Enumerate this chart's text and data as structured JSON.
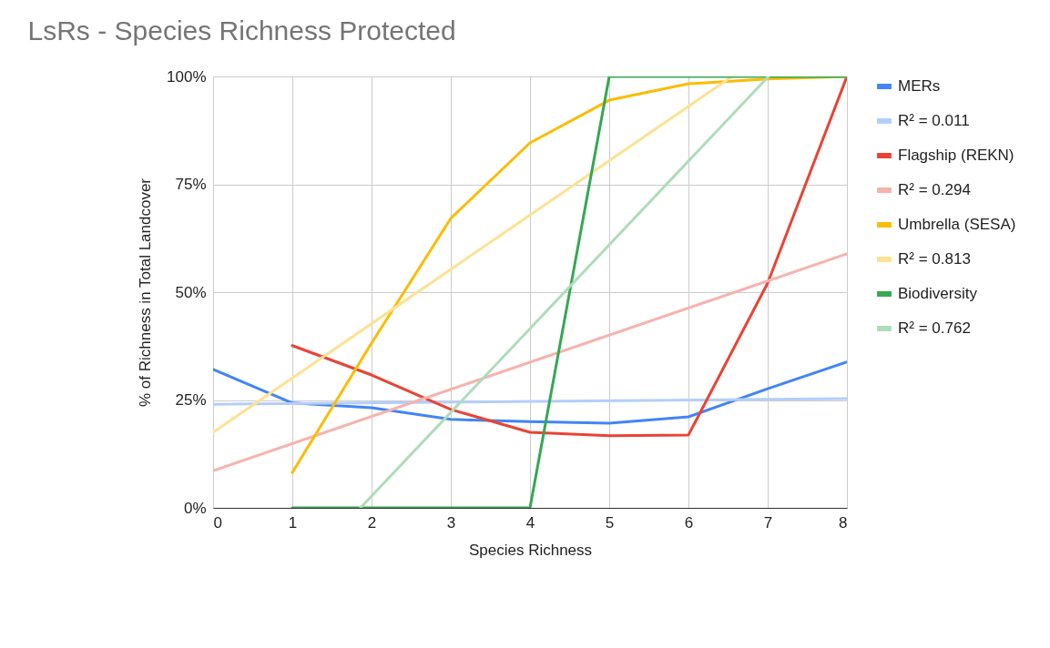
{
  "chart_data": {
    "type": "line",
    "title": "LsRs - Species Richness Protected",
    "xlabel": "Species Richness",
    "ylabel": "% of Richness in Total Landcover",
    "x": [
      0,
      1,
      2,
      3,
      4,
      5,
      6,
      7,
      8
    ],
    "series": [
      {
        "name": "MERs",
        "color": "#4285f4",
        "values": [
          32.1,
          24.3,
          23.2,
          20.5,
          20,
          19.6,
          21.1,
          27.6,
          33.8
        ]
      },
      {
        "name": "R² = 0.011",
        "color": "#b3cefb",
        "x": [
          0,
          8
        ],
        "values": [
          24.0,
          25.3
        ]
      },
      {
        "name": "Flagship (REKN)",
        "color": "#ea4335",
        "values": [
          null,
          37.6,
          30.8,
          22.8,
          17.5,
          16.7,
          16.9,
          52.1,
          100
        ]
      },
      {
        "name": "R² = 0.294",
        "color": "#f6b3ad",
        "x": [
          0,
          8
        ],
        "values": [
          8.6,
          58.9
        ]
      },
      {
        "name": "Umbrella (SESA)",
        "color": "#fbbc04",
        "values": [
          null,
          8.2,
          38.2,
          67.1,
          84.6,
          94.5,
          98.3,
          99.4,
          100
        ]
      },
      {
        "name": "R² = 0.813",
        "color": "#fde293",
        "x": [
          0,
          6.55
        ],
        "values": [
          17.5,
          100
        ]
      },
      {
        "name": "Biodiversity",
        "color": "#34a853",
        "values": [
          null,
          0,
          0,
          0,
          0,
          100,
          100,
          100,
          100
        ]
      },
      {
        "name": "R² = 0.762",
        "color": "#aedcba",
        "x": [
          1.86,
          7.01
        ],
        "values": [
          0,
          100
        ]
      }
    ],
    "xlim": [
      0,
      8
    ],
    "xticks": [
      0,
      1,
      2,
      3,
      4,
      5,
      6,
      7,
      8
    ],
    "ylim": [
      0,
      100
    ],
    "yticks": [
      {
        "value": 0,
        "label": "0%"
      },
      {
        "value": 25,
        "label": "25%"
      },
      {
        "value": 50,
        "label": "50%"
      },
      {
        "value": 75,
        "label": "75%"
      },
      {
        "value": 100,
        "label": "100%"
      }
    ],
    "grid": true,
    "legend": "right"
  }
}
